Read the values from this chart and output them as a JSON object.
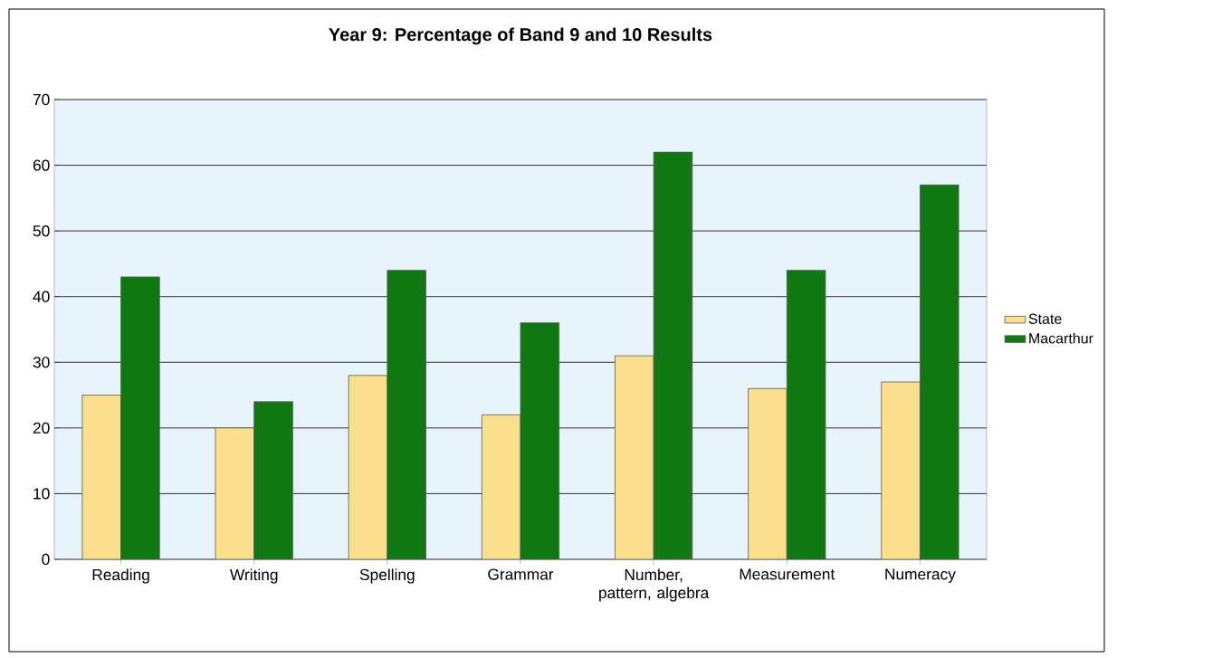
{
  "chart_data": {
    "type": "bar",
    "title": "Year 9: Percentage of Band 9 and 10 Results",
    "categories": [
      "Reading",
      "Writing",
      "Spelling",
      "Grammar",
      "Number, pattern, algebra",
      "Measurement",
      "Numeracy"
    ],
    "series": [
      {
        "name": "State",
        "color": "#fae08c",
        "values": [
          25,
          20,
          28,
          22,
          31,
          26,
          27
        ]
      },
      {
        "name": "Macarthur",
        "color": "#107810",
        "values": [
          43,
          24,
          44,
          36,
          62,
          44,
          57
        ]
      }
    ],
    "ylim": [
      0,
      70
    ],
    "yticks": [
      0,
      10,
      20,
      30,
      40,
      50,
      60,
      70
    ],
    "grid": "y",
    "legend": "right"
  }
}
